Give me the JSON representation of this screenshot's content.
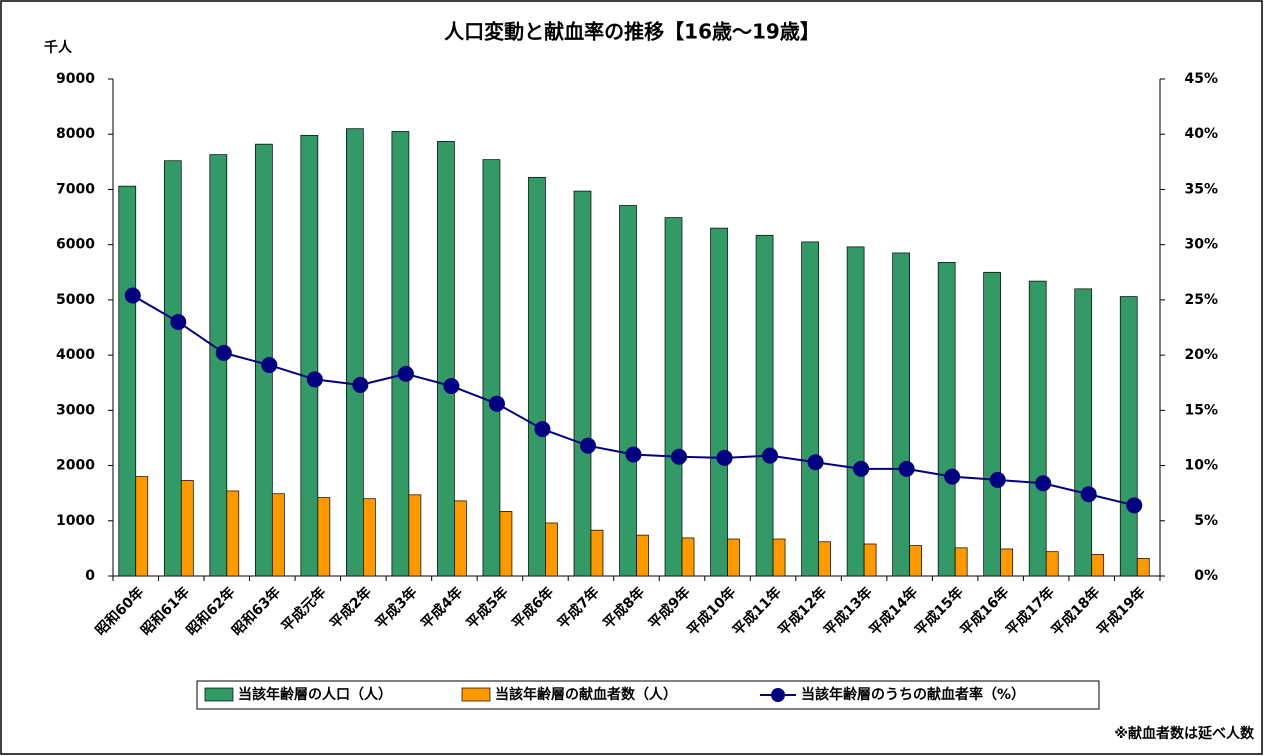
{
  "chart_data": {
    "type": "bar",
    "title": "人口変動と献血率の推移【16歳～19歳】",
    "y_unit_label": "千人",
    "footnote": "※献血者数は延べ人数",
    "categories": [
      "昭和60年",
      "昭和61年",
      "昭和62年",
      "昭和63年",
      "平成元年",
      "平成2年",
      "平成3年",
      "平成4年",
      "平成5年",
      "平成6年",
      "平成7年",
      "平成8年",
      "平成9年",
      "平成10年",
      "平成11年",
      "平成12年",
      "平成13年",
      "平成14年",
      "平成15年",
      "平成16年",
      "平成17年",
      "平成18年",
      "平成19年"
    ],
    "series": [
      {
        "name": "当該年齢層の人口（人）",
        "type": "bar",
        "color": "#339966",
        "values": [
          7060,
          7520,
          7630,
          7820,
          7980,
          8100,
          8050,
          7870,
          7540,
          7220,
          6970,
          6710,
          6490,
          6300,
          6170,
          6050,
          5960,
          5850,
          5680,
          5500,
          5340,
          5200,
          5060
        ]
      },
      {
        "name": "当該年齢層の献血者数（人）",
        "type": "bar",
        "color": "#ff9900",
        "values": [
          1800,
          1730,
          1540,
          1490,
          1420,
          1400,
          1470,
          1360,
          1170,
          960,
          830,
          740,
          690,
          670,
          670,
          620,
          580,
          550,
          510,
          490,
          440,
          390,
          320
        ]
      },
      {
        "name": "当該年齢層のうちの献血者率（%）",
        "type": "line",
        "axis": "y2",
        "color": "#000080",
        "values": [
          25.4,
          23.0,
          20.2,
          19.1,
          17.8,
          17.3,
          18.3,
          17.2,
          15.6,
          13.3,
          11.8,
          11.0,
          10.8,
          10.7,
          10.9,
          10.3,
          9.7,
          9.7,
          9.0,
          8.7,
          8.4,
          7.4,
          6.4
        ]
      }
    ],
    "ylim": [
      0,
      9000
    ],
    "yticks": [
      0,
      1000,
      2000,
      3000,
      4000,
      5000,
      6000,
      7000,
      8000,
      9000
    ],
    "y2lim": [
      0,
      45
    ],
    "y2ticks": [
      {
        "value": 0,
        "label": "0%"
      },
      {
        "value": 5,
        "label": "5%"
      },
      {
        "value": 10,
        "label": "10%"
      },
      {
        "value": 15,
        "label": "15%"
      },
      {
        "value": 20,
        "label": "20%"
      },
      {
        "value": 25,
        "label": "25%"
      },
      {
        "value": 30,
        "label": "30%"
      },
      {
        "value": 35,
        "label": "35%"
      },
      {
        "value": 40,
        "label": "40%"
      },
      {
        "value": 45,
        "label": "45%"
      }
    ],
    "grid": false
  }
}
